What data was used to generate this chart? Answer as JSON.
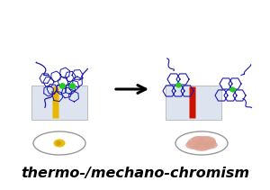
{
  "title_text": "thermo-/mechano-chromism",
  "title_fontsize": 11.5,
  "bg_color": "#ffffff",
  "blue": "#1a1aaa",
  "green": "#22cc22",
  "yellow": "#e8b800",
  "red": "#cc1100",
  "pink": "#dda090",
  "tube_bg": "#dde4ef",
  "dish_edge": "#999999"
}
